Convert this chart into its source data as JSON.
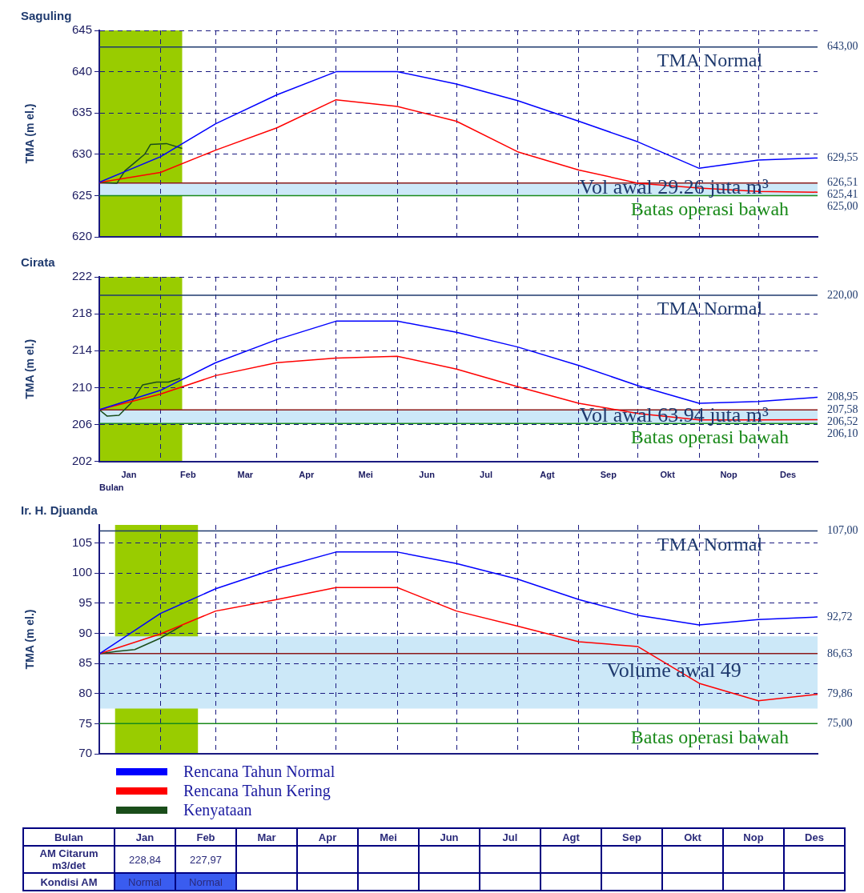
{
  "chart_data": [
    {
      "type": "line",
      "title": "Saguling",
      "ylabel": "TMA (m el.)",
      "x": [
        "--01-01",
        "--02-01",
        "--03-01",
        "--04-01",
        "--05-01",
        "--06-01",
        "--07-01",
        "--08-01",
        "--09-01",
        "--10-01",
        "--11-01",
        "--12-01",
        "--12-31"
      ],
      "xlim": [
        "--01-01",
        "--12-31"
      ],
      "xticks": [
        {
          "value": "--02-01",
          "label": null
        },
        {
          "value": "--03-01",
          "label": null
        },
        {
          "value": "--04-01",
          "label": null
        },
        {
          "value": "--05-01",
          "label": null
        },
        {
          "value": "--06-01",
          "label": null
        },
        {
          "value": "--07-01",
          "label": null
        },
        {
          "value": "--08-01",
          "label": null
        },
        {
          "value": "--09-01",
          "label": null
        },
        {
          "value": "--10-01",
          "label": null
        },
        {
          "value": "--11-01",
          "label": null
        },
        {
          "value": "--12-01",
          "label": null
        }
      ],
      "ylim": [
        620,
        645
      ],
      "yticks": [
        620,
        625,
        630,
        635,
        640,
        645
      ],
      "grid": true,
      "tick_labels": "y",
      "line_style": "solid",
      "marker": "none",
      "series": [
        {
          "color": "#0000ff",
          "values": [
            626.6,
            629.7,
            633.7,
            637.2,
            640,
            640,
            638.5,
            636.5,
            634,
            631.5,
            628.3,
            629.3,
            629.55
          ]
        },
        {
          "color": "#ff0000",
          "values": [
            626.6,
            627.8,
            630.5,
            633.2,
            636.6,
            635.8,
            634,
            630.3,
            628.1,
            626.5,
            625.9,
            625.5,
            625.41
          ]
        },
        {
          "color": "#1a4d1a",
          "x": [
            "--01-01",
            "--01-10",
            "--01-14",
            "--01-19",
            "--01-24",
            "--01-27",
            "--02-04",
            "--02-12"
          ],
          "values": [
            626.6,
            626.5,
            628,
            629,
            630,
            631.2,
            631.3,
            630.7
          ]
        }
      ],
      "bands": [
        {
          "axis": "x",
          "from": "--01-01",
          "to": "--02-12",
          "color": "#99cc00"
        },
        {
          "axis": "y",
          "from": 625,
          "to": 626.51,
          "color": "#cce8f8",
          "label": "Vol awal 29.26 juta m³"
        }
      ],
      "ref_lines": [
        {
          "axis": "y",
          "value": 643,
          "color": "#1f3a6e",
          "label": "TMA Normal"
        },
        {
          "axis": "y",
          "value": 626.51,
          "color": "#8b1a1a"
        },
        {
          "axis": "y",
          "value": 625,
          "color": "#1a8a1a",
          "label": "Batas operasi bawah"
        }
      ],
      "annotations": [
        {
          "text": "643,00",
          "x": "--12-31",
          "y": 643
        },
        {
          "text": "629,55",
          "x": "--12-31",
          "y": 629.55
        },
        {
          "text": "626,51",
          "x": "--12-31",
          "y": 626.51
        },
        {
          "text": "625,41",
          "x": "--12-31",
          "y": 625.41
        },
        {
          "text": "625,00",
          "x": "--12-31",
          "y": 625
        }
      ]
    },
    {
      "type": "line",
      "title": "Cirata",
      "ylabel": "TMA (m el.)",
      "xlabel": "Bulan",
      "x": [
        "--01-01",
        "--02-01",
        "--03-01",
        "--04-01",
        "--05-01",
        "--06-01",
        "--07-01",
        "--08-01",
        "--09-01",
        "--10-01",
        "--11-01",
        "--12-01",
        "--12-31"
      ],
      "xlim": [
        "--01-01",
        "--12-31"
      ],
      "xticks": [
        {
          "value": "--01-16",
          "label": "Jan"
        },
        {
          "value": "--02-01",
          "label": null
        },
        {
          "value": "--02-15",
          "label": "Feb"
        },
        {
          "value": "--03-01",
          "label": null
        },
        {
          "value": "--03-16",
          "label": "Mar"
        },
        {
          "value": "--04-01",
          "label": null
        },
        {
          "value": "--04-16",
          "label": "Apr"
        },
        {
          "value": "--05-01",
          "label": null
        },
        {
          "value": "--05-16",
          "label": "Mei"
        },
        {
          "value": "--06-01",
          "label": null
        },
        {
          "value": "--06-16",
          "label": "Jun"
        },
        {
          "value": "--07-01",
          "label": null
        },
        {
          "value": "--07-16",
          "label": "Jul"
        },
        {
          "value": "--08-01",
          "label": null
        },
        {
          "value": "--08-16",
          "label": "Agt"
        },
        {
          "value": "--09-01",
          "label": null
        },
        {
          "value": "--09-16",
          "label": "Sep"
        },
        {
          "value": "--10-01",
          "label": null
        },
        {
          "value": "--10-16",
          "label": "Okt"
        },
        {
          "value": "--11-01",
          "label": null
        },
        {
          "value": "--11-16",
          "label": "Nop"
        },
        {
          "value": "--12-01",
          "label": null
        },
        {
          "value": "--12-16",
          "label": "Des"
        }
      ],
      "ylim": [
        202,
        222
      ],
      "yticks": [
        202,
        206,
        210,
        214,
        218,
        222
      ],
      "grid": true,
      "line_style": "solid",
      "marker": "none",
      "series": [
        {
          "color": "#0000ff",
          "values": [
            207.6,
            209.7,
            212.7,
            215.2,
            217.2,
            217.2,
            216,
            214.4,
            212.4,
            210.2,
            208.3,
            208.5,
            208.95
          ]
        },
        {
          "color": "#ff0000",
          "values": [
            207.6,
            209.3,
            211.3,
            212.7,
            213.2,
            213.4,
            212,
            210.1,
            208.3,
            207.2,
            206.5,
            206.5,
            206.52
          ]
        },
        {
          "color": "#1a4d1a",
          "x": [
            "--01-01",
            "--01-05",
            "--01-11",
            "--01-17",
            "--01-23",
            "--01-30",
            "--02-05",
            "--02-11"
          ],
          "values": [
            207.6,
            206.9,
            207,
            208.3,
            210.3,
            210.6,
            210.6,
            211
          ]
        }
      ],
      "bands": [
        {
          "axis": "x",
          "from": "--01-01",
          "to": "--02-12",
          "color": "#99cc00"
        },
        {
          "axis": "y",
          "from": 206.1,
          "to": 207.58,
          "color": "#cce8f8",
          "label": "Vol awal 63.94 juta m³"
        }
      ],
      "ref_lines": [
        {
          "axis": "y",
          "value": 220,
          "color": "#1f3a6e",
          "label": "TMA Normal"
        },
        {
          "axis": "y",
          "value": 207.58,
          "color": "#8b1a1a"
        },
        {
          "axis": "y",
          "value": 206.1,
          "color": "#1a8a1a",
          "label": "Batas operasi bawah"
        }
      ],
      "annotations": [
        {
          "text": "220,00",
          "x": "--12-31",
          "y": 220
        },
        {
          "text": "208,95",
          "x": "--12-31",
          "y": 208.95
        },
        {
          "text": "207,58",
          "x": "--12-31",
          "y": 207.58
        },
        {
          "text": "206,52",
          "x": "--12-31",
          "y": 206.52
        },
        {
          "text": "206,10",
          "x": "--12-31",
          "y": 206.1
        }
      ]
    },
    {
      "type": "line",
      "title": "Ir. H. Djuanda",
      "ylabel": "TMA (m el.)",
      "x": [
        "--01-01",
        "--02-01",
        "--03-01",
        "--04-01",
        "--05-01",
        "--06-01",
        "--07-01",
        "--08-01",
        "--09-01",
        "--10-01",
        "--11-01",
        "--12-01",
        "--12-31"
      ],
      "xlim": [
        "--01-01",
        "--12-31"
      ],
      "xticks": [
        {
          "value": "--02-01",
          "label": null
        },
        {
          "value": "--03-01",
          "label": null
        },
        {
          "value": "--04-01",
          "label": null
        },
        {
          "value": "--05-01",
          "label": null
        },
        {
          "value": "--06-01",
          "label": null
        },
        {
          "value": "--07-01",
          "label": null
        },
        {
          "value": "--08-01",
          "label": null
        },
        {
          "value": "--09-01",
          "label": null
        },
        {
          "value": "--10-01",
          "label": null
        },
        {
          "value": "--11-01",
          "label": null
        },
        {
          "value": "--12-01",
          "label": null
        }
      ],
      "ylim": [
        70,
        108
      ],
      "yticks": [
        70,
        75,
        80,
        85,
        90,
        95,
        100,
        105
      ],
      "grid": true,
      "tick_labels": "y",
      "line_style": "solid",
      "marker": "none",
      "legend": "bottom left",
      "series": [
        {
          "name": "Rencana Tahun Normal",
          "color": "#0000ff",
          "values": [
            86.6,
            93.3,
            97.4,
            100.8,
            103.5,
            103.5,
            101.6,
            99,
            95.6,
            93,
            91.4,
            92.3,
            92.72
          ]
        },
        {
          "name": "Rencana Tahun Kering",
          "color": "#ff0000",
          "values": [
            86.6,
            89.9,
            93.7,
            95.6,
            97.6,
            97.6,
            93.7,
            91.2,
            88.6,
            87.8,
            81.7,
            78.8,
            79.86
          ]
        },
        {
          "name": "Kenyataan",
          "color": "#1a4d1a",
          "x": [
            "--01-01",
            "--01-10",
            "--01-19",
            "--02-01",
            "--02-12"
          ],
          "values": [
            86.6,
            87,
            87.3,
            89.2,
            91.3
          ]
        }
      ],
      "bands": [
        {
          "axis": "x",
          "from": "--01-09",
          "to": "--02-20",
          "color": "#99cc00"
        },
        {
          "axis": "y",
          "from": 77.5,
          "to": 89.5,
          "color": "#cce8f8",
          "label": "Volume awal 49"
        }
      ],
      "ref_lines": [
        {
          "axis": "y",
          "value": 107,
          "color": "#1f3a6e",
          "label": "TMA Normal"
        },
        {
          "axis": "y",
          "value": 86.63,
          "color": "#8b1a1a"
        },
        {
          "axis": "y",
          "value": 75,
          "color": "#1a8a1a",
          "label": "Batas operasi bawah"
        }
      ],
      "annotations": [
        {
          "text": "107,00",
          "x": "--12-31",
          "y": 107
        },
        {
          "text": "92,72",
          "x": "--12-31",
          "y": 92.72
        },
        {
          "text": "86,63",
          "x": "--12-31",
          "y": 86.63
        },
        {
          "text": "79,86",
          "x": "--12-31",
          "y": 79.86
        },
        {
          "text": "75,00",
          "x": "--12-31",
          "y": 75
        }
      ]
    },
    {
      "type": "other",
      "xlabel": "Bulan",
      "categories": [
        "Jan",
        "Feb",
        "Mar",
        "Apr",
        "Mei",
        "Jun",
        "Jul",
        "Agt",
        "Sep",
        "Okt",
        "Nop",
        "Des"
      ],
      "annotations": [
        "AM Citarum m3/det",
        "228,84",
        "227,97",
        "Kondisi AM",
        "Normal",
        "Normal"
      ]
    }
  ]
}
